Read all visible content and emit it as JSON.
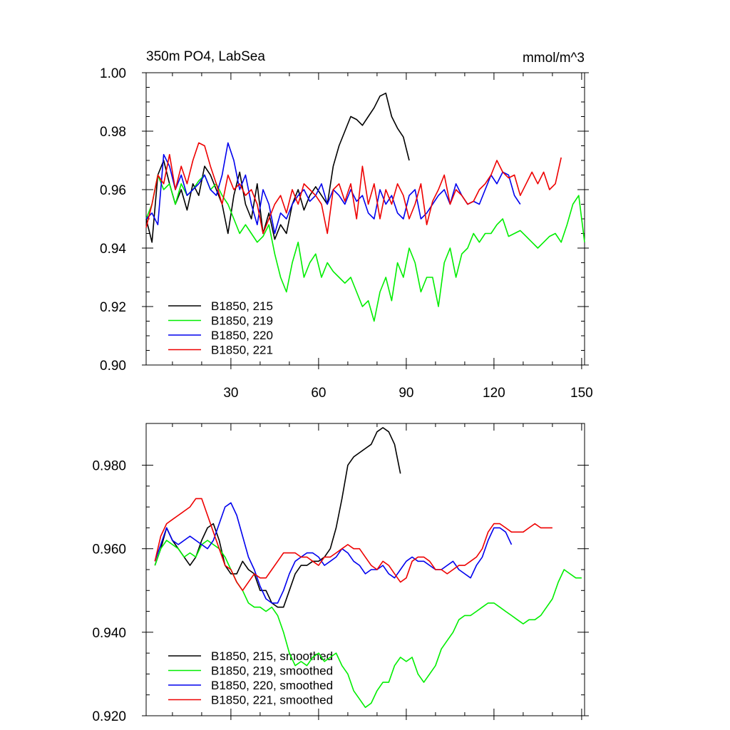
{
  "chart_data": [
    {
      "type": "line",
      "title_left": "350m PO4, LabSea",
      "title_right": "mmol/m^3",
      "xlim": [
        1,
        151
      ],
      "ylim": [
        0.9,
        1.0
      ],
      "xticks": [
        30,
        60,
        90,
        120,
        150
      ],
      "yticks": [
        0.9,
        0.92,
        0.94,
        0.96,
        0.98,
        1.0
      ],
      "ytick_labels": [
        "0.90",
        "0.92",
        "0.94",
        "0.96",
        "0.98",
        "1.00"
      ],
      "series": [
        {
          "name": "B1850, 215",
          "color": "#000000",
          "x": [
            1,
            3,
            5,
            7,
            9,
            11,
            13,
            15,
            17,
            19,
            21,
            23,
            25,
            27,
            29,
            31,
            33,
            35,
            37,
            39,
            41,
            43,
            45,
            47,
            49,
            51,
            53,
            55,
            57,
            59,
            61,
            63,
            65,
            67,
            69,
            71,
            73,
            75,
            77,
            79,
            81,
            83,
            85,
            87,
            89,
            91
          ],
          "y": [
            0.95,
            0.942,
            0.965,
            0.97,
            0.962,
            0.955,
            0.96,
            0.953,
            0.962,
            0.958,
            0.968,
            0.965,
            0.96,
            0.955,
            0.945,
            0.958,
            0.966,
            0.955,
            0.95,
            0.962,
            0.945,
            0.952,
            0.943,
            0.948,
            0.945,
            0.955,
            0.96,
            0.953,
            0.958,
            0.961,
            0.958,
            0.955,
            0.968,
            0.975,
            0.98,
            0.985,
            0.984,
            0.982,
            0.985,
            0.988,
            0.992,
            0.993,
            0.985,
            0.981,
            0.978,
            0.97
          ]
        },
        {
          "name": "B1850, 219",
          "color": "#00ee00",
          "x": [
            1,
            3,
            5,
            7,
            9,
            11,
            13,
            15,
            17,
            19,
            21,
            23,
            25,
            27,
            29,
            31,
            33,
            35,
            37,
            39,
            41,
            43,
            45,
            47,
            49,
            51,
            53,
            55,
            57,
            59,
            61,
            63,
            65,
            67,
            69,
            71,
            73,
            75,
            77,
            79,
            81,
            83,
            85,
            87,
            89,
            91,
            93,
            95,
            97,
            99,
            101,
            103,
            105,
            107,
            109,
            111,
            113,
            115,
            117,
            119,
            121,
            123,
            125,
            127,
            129,
            131,
            133,
            135,
            137,
            139,
            141,
            143,
            145,
            147,
            149,
            151
          ],
          "y": [
            0.95,
            0.955,
            0.965,
            0.96,
            0.962,
            0.955,
            0.962,
            0.958,
            0.96,
            0.963,
            0.965,
            0.96,
            0.962,
            0.958,
            0.955,
            0.95,
            0.945,
            0.948,
            0.945,
            0.942,
            0.944,
            0.948,
            0.938,
            0.93,
            0.925,
            0.935,
            0.942,
            0.93,
            0.935,
            0.938,
            0.93,
            0.935,
            0.932,
            0.93,
            0.928,
            0.93,
            0.925,
            0.92,
            0.922,
            0.915,
            0.925,
            0.93,
            0.922,
            0.935,
            0.93,
            0.94,
            0.935,
            0.925,
            0.93,
            0.93,
            0.92,
            0.935,
            0.94,
            0.93,
            0.938,
            0.94,
            0.945,
            0.942,
            0.945,
            0.945,
            0.948,
            0.95,
            0.944,
            0.945,
            0.946,
            0.944,
            0.942,
            0.94,
            0.942,
            0.944,
            0.945,
            0.942,
            0.948,
            0.955,
            0.958,
            0.942
          ]
        },
        {
          "name": "B1850, 220",
          "color": "#0000ee",
          "x": [
            1,
            3,
            5,
            7,
            9,
            11,
            13,
            15,
            17,
            19,
            21,
            23,
            25,
            27,
            29,
            31,
            33,
            35,
            37,
            39,
            41,
            43,
            45,
            47,
            49,
            51,
            53,
            55,
            57,
            59,
            61,
            63,
            65,
            67,
            69,
            71,
            73,
            75,
            77,
            79,
            81,
            83,
            85,
            87,
            89,
            91,
            93,
            95,
            97,
            99,
            101,
            103,
            105,
            107,
            109,
            111,
            113,
            115,
            117,
            119,
            121,
            123,
            125,
            127,
            129
          ],
          "y": [
            0.95,
            0.952,
            0.948,
            0.972,
            0.968,
            0.96,
            0.965,
            0.958,
            0.96,
            0.962,
            0.965,
            0.96,
            0.958,
            0.965,
            0.976,
            0.97,
            0.96,
            0.965,
            0.955,
            0.948,
            0.96,
            0.955,
            0.945,
            0.952,
            0.95,
            0.955,
            0.958,
            0.96,
            0.956,
            0.958,
            0.962,
            0.955,
            0.96,
            0.958,
            0.955,
            0.96,
            0.956,
            0.958,
            0.952,
            0.95,
            0.96,
            0.955,
            0.958,
            0.952,
            0.95,
            0.958,
            0.96,
            0.95,
            0.952,
            0.955,
            0.958,
            0.96,
            0.955,
            0.962,
            0.958,
            0.955,
            0.956,
            0.955,
            0.96,
            0.965,
            0.962,
            0.966,
            0.965,
            0.958,
            0.955
          ]
        },
        {
          "name": "B1850, 221",
          "color": "#ee0000",
          "x": [
            1,
            3,
            5,
            7,
            9,
            11,
            13,
            15,
            17,
            19,
            21,
            23,
            25,
            27,
            29,
            31,
            33,
            35,
            37,
            39,
            41,
            43,
            45,
            47,
            49,
            51,
            53,
            55,
            57,
            59,
            61,
            63,
            65,
            67,
            69,
            71,
            73,
            75,
            77,
            79,
            81,
            83,
            85,
            87,
            89,
            91,
            93,
            95,
            97,
            99,
            101,
            103,
            105,
            107,
            109,
            111,
            113,
            115,
            117,
            119,
            121,
            123,
            125,
            127,
            129,
            131,
            133,
            135,
            137,
            139,
            141,
            143
          ],
          "y": [
            0.947,
            0.955,
            0.965,
            0.962,
            0.972,
            0.96,
            0.968,
            0.962,
            0.97,
            0.976,
            0.975,
            0.968,
            0.962,
            0.955,
            0.965,
            0.96,
            0.962,
            0.958,
            0.96,
            0.955,
            0.945,
            0.95,
            0.955,
            0.958,
            0.952,
            0.96,
            0.955,
            0.962,
            0.96,
            0.958,
            0.955,
            0.945,
            0.96,
            0.962,
            0.956,
            0.962,
            0.95,
            0.968,
            0.955,
            0.962,
            0.95,
            0.96,
            0.955,
            0.962,
            0.958,
            0.95,
            0.955,
            0.962,
            0.948,
            0.956,
            0.96,
            0.965,
            0.955,
            0.96,
            0.958,
            0.955,
            0.956,
            0.96,
            0.962,
            0.965,
            0.97,
            0.966,
            0.964,
            0.965,
            0.958,
            0.962,
            0.966,
            0.962,
            0.966,
            0.96,
            0.962,
            0.971
          ]
        }
      ]
    },
    {
      "type": "line",
      "xlim": [
        1,
        151
      ],
      "ylim": [
        0.92,
        0.99
      ],
      "xticks": [
        30,
        60,
        90,
        120,
        150
      ],
      "yticks": [
        0.92,
        0.94,
        0.96,
        0.98
      ],
      "ytick_labels": [
        "0.920",
        "0.940",
        "0.960",
        "0.980"
      ],
      "series": [
        {
          "name": "B1850, 215, smoothed",
          "color": "#000000",
          "x": [
            4,
            6,
            8,
            10,
            12,
            14,
            16,
            18,
            20,
            22,
            24,
            26,
            28,
            30,
            32,
            34,
            36,
            38,
            40,
            42,
            44,
            46,
            48,
            50,
            52,
            54,
            56,
            58,
            60,
            62,
            64,
            66,
            68,
            70,
            72,
            74,
            76,
            78,
            80,
            82,
            84,
            86,
            88
          ],
          "y": [
            0.956,
            0.96,
            0.965,
            0.962,
            0.96,
            0.958,
            0.956,
            0.958,
            0.962,
            0.965,
            0.966,
            0.962,
            0.956,
            0.954,
            0.954,
            0.957,
            0.955,
            0.954,
            0.95,
            0.95,
            0.947,
            0.946,
            0.946,
            0.95,
            0.954,
            0.956,
            0.956,
            0.957,
            0.957,
            0.958,
            0.96,
            0.965,
            0.972,
            0.98,
            0.982,
            0.983,
            0.984,
            0.985,
            0.988,
            0.989,
            0.988,
            0.985,
            0.978
          ]
        },
        {
          "name": "B1850, 219, smoothed",
          "color": "#00ee00",
          "x": [
            4,
            6,
            8,
            10,
            12,
            14,
            16,
            18,
            20,
            22,
            24,
            26,
            28,
            30,
            32,
            34,
            36,
            38,
            40,
            42,
            44,
            46,
            48,
            50,
            52,
            54,
            56,
            58,
            60,
            62,
            64,
            66,
            68,
            70,
            72,
            74,
            76,
            78,
            80,
            82,
            84,
            86,
            88,
            90,
            92,
            94,
            96,
            98,
            100,
            102,
            104,
            106,
            108,
            110,
            112,
            114,
            116,
            118,
            120,
            122,
            124,
            126,
            128,
            130,
            132,
            134,
            136,
            138,
            140,
            142,
            144,
            146,
            148,
            150
          ],
          "y": [
            0.956,
            0.96,
            0.962,
            0.961,
            0.96,
            0.958,
            0.959,
            0.958,
            0.961,
            0.962,
            0.961,
            0.96,
            0.958,
            0.955,
            0.952,
            0.95,
            0.947,
            0.946,
            0.946,
            0.945,
            0.946,
            0.944,
            0.94,
            0.935,
            0.932,
            0.933,
            0.932,
            0.934,
            0.935,
            0.933,
            0.934,
            0.935,
            0.932,
            0.93,
            0.926,
            0.924,
            0.922,
            0.923,
            0.926,
            0.928,
            0.928,
            0.932,
            0.934,
            0.933,
            0.934,
            0.93,
            0.928,
            0.93,
            0.932,
            0.936,
            0.938,
            0.94,
            0.943,
            0.944,
            0.944,
            0.945,
            0.946,
            0.947,
            0.947,
            0.946,
            0.945,
            0.944,
            0.943,
            0.942,
            0.943,
            0.943,
            0.944,
            0.946,
            0.948,
            0.952,
            0.955,
            0.954,
            0.953,
            0.953
          ]
        },
        {
          "name": "B1850, 220, smoothed",
          "color": "#0000ee",
          "x": [
            4,
            6,
            8,
            10,
            12,
            14,
            16,
            18,
            20,
            22,
            24,
            26,
            28,
            30,
            32,
            34,
            36,
            38,
            40,
            42,
            44,
            46,
            48,
            50,
            52,
            54,
            56,
            58,
            60,
            62,
            64,
            66,
            68,
            70,
            72,
            74,
            76,
            78,
            80,
            82,
            84,
            86,
            88,
            90,
            92,
            94,
            96,
            98,
            100,
            102,
            104,
            106,
            108,
            110,
            112,
            114,
            116,
            118,
            120,
            122,
            124,
            126
          ],
          "y": [
            0.957,
            0.961,
            0.965,
            0.962,
            0.961,
            0.962,
            0.963,
            0.962,
            0.961,
            0.96,
            0.962,
            0.966,
            0.97,
            0.971,
            0.968,
            0.963,
            0.958,
            0.955,
            0.951,
            0.948,
            0.947,
            0.947,
            0.95,
            0.954,
            0.957,
            0.958,
            0.959,
            0.959,
            0.958,
            0.956,
            0.957,
            0.958,
            0.96,
            0.959,
            0.957,
            0.956,
            0.954,
            0.955,
            0.955,
            0.956,
            0.954,
            0.953,
            0.955,
            0.957,
            0.958,
            0.957,
            0.957,
            0.956,
            0.955,
            0.955,
            0.956,
            0.957,
            0.955,
            0.954,
            0.953,
            0.956,
            0.958,
            0.962,
            0.965,
            0.965,
            0.964,
            0.961
          ]
        },
        {
          "name": "B1850, 221, smoothed",
          "color": "#ee0000",
          "x": [
            4,
            6,
            8,
            10,
            12,
            14,
            16,
            18,
            20,
            22,
            24,
            26,
            28,
            30,
            32,
            34,
            36,
            38,
            40,
            42,
            44,
            46,
            48,
            50,
            52,
            54,
            56,
            58,
            60,
            62,
            64,
            66,
            68,
            70,
            72,
            74,
            76,
            78,
            80,
            82,
            84,
            86,
            88,
            90,
            92,
            94,
            96,
            98,
            100,
            102,
            104,
            106,
            108,
            110,
            112,
            114,
            116,
            118,
            120,
            122,
            124,
            126,
            128,
            130,
            132,
            134,
            136,
            138,
            140
          ],
          "y": [
            0.957,
            0.963,
            0.966,
            0.967,
            0.968,
            0.969,
            0.97,
            0.972,
            0.972,
            0.968,
            0.964,
            0.96,
            0.956,
            0.955,
            0.952,
            0.95,
            0.952,
            0.954,
            0.953,
            0.953,
            0.955,
            0.957,
            0.959,
            0.959,
            0.959,
            0.958,
            0.958,
            0.957,
            0.956,
            0.958,
            0.958,
            0.959,
            0.96,
            0.961,
            0.96,
            0.96,
            0.958,
            0.956,
            0.955,
            0.957,
            0.956,
            0.954,
            0.952,
            0.953,
            0.957,
            0.958,
            0.958,
            0.957,
            0.955,
            0.955,
            0.954,
            0.955,
            0.956,
            0.956,
            0.957,
            0.958,
            0.96,
            0.964,
            0.966,
            0.966,
            0.965,
            0.964,
            0.964,
            0.964,
            0.965,
            0.966,
            0.965,
            0.965,
            0.965
          ]
        }
      ]
    }
  ]
}
